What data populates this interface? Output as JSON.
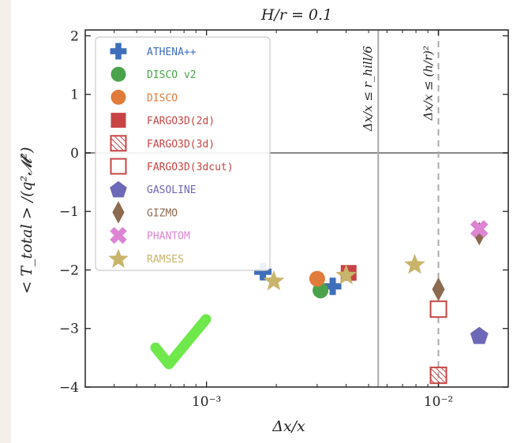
{
  "chart_data": {
    "type": "scatter",
    "title": "H/r = 0.1",
    "xlabel": "Δx/x",
    "ylabel": "< T_total > /(q²𝓜²)",
    "xscale": "log",
    "xlim": [
      0.0003,
      0.02
    ],
    "ylim": [
      -4,
      2.1
    ],
    "x_ticks": [
      {
        "value": 0.001,
        "label": "10⁻³"
      },
      {
        "value": 0.01,
        "label": "10⁻²"
      }
    ],
    "y_ticks": [
      2,
      1,
      0,
      -1,
      -2,
      -3,
      -4
    ],
    "y_tick_labels": [
      "2",
      "1",
      "0",
      "−1",
      "−2",
      "−3",
      "−4"
    ],
    "hline_y": 0,
    "vlines": [
      {
        "x": 0.0055,
        "label": "Δx/x ≤ r_hill/6",
        "style": "solid",
        "color": "#aaaaaa"
      },
      {
        "x": 0.01,
        "label": "Δx/x ≤ (h/r)²",
        "style": "dashed",
        "color": "#aaaaaa"
      }
    ],
    "legend_position": "upper-left",
    "series": [
      {
        "name": "ATHENA++",
        "color": "#3f6fba",
        "marker": "plus",
        "points": [
          [
            0.00175,
            -2.03
          ],
          [
            0.0035,
            -2.28
          ]
        ]
      },
      {
        "name": "DISCO v2",
        "color": "#4aa34a",
        "marker": "circle",
        "points": [
          [
            0.0031,
            -2.35
          ]
        ]
      },
      {
        "name": "DISCO",
        "color": "#e07b3c",
        "marker": "circle",
        "points": [
          [
            0.003,
            -2.15
          ]
        ]
      },
      {
        "name": "FARGO3D(2d)",
        "color": "#c84444",
        "marker": "square",
        "points": [
          [
            0.0041,
            -2.05
          ]
        ]
      },
      {
        "name": "FARGO3D(3d)",
        "color": "#c84444",
        "marker": "square-hatched",
        "points": [
          [
            0.01,
            -3.8
          ]
        ]
      },
      {
        "name": "FARGO3D(3dcut)",
        "color": "#c84444",
        "marker": "square-open",
        "points": [
          [
            0.01,
            -2.67
          ]
        ]
      },
      {
        "name": "GASOLINE",
        "color": "#6d68b8",
        "marker": "pentagon",
        "points": [
          [
            0.015,
            -3.12
          ]
        ]
      },
      {
        "name": "GIZMO",
        "color": "#8b6a4f",
        "marker": "diamond",
        "points": [
          [
            0.01,
            -2.33
          ],
          [
            0.015,
            -1.38
          ]
        ]
      },
      {
        "name": "PHANTOM",
        "color": "#dd84d2",
        "marker": "x",
        "points": [
          [
            0.015,
            -1.3
          ]
        ]
      },
      {
        "name": "RAMSES",
        "color": "#c8b46a",
        "marker": "star",
        "points": [
          [
            0.00195,
            -2.18
          ],
          [
            0.004,
            -2.08
          ],
          [
            0.0079,
            -1.9
          ]
        ]
      }
    ]
  },
  "overlay": {
    "checkmark_color": "#6ee84a"
  }
}
